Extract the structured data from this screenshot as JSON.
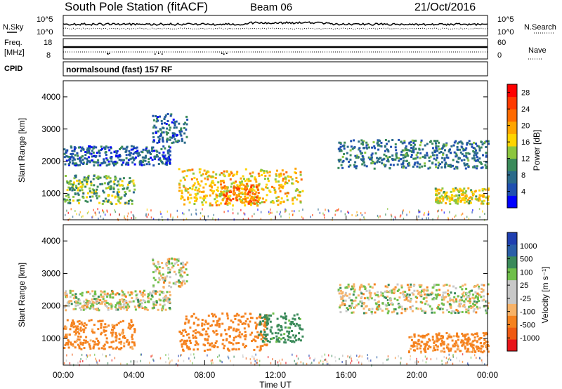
{
  "header": {
    "station": "South Pole Station (fitACF)",
    "beam": "Beam 06",
    "date": "21/Oct/2016"
  },
  "noise_panel": {
    "left_label": "N.Sky",
    "left_ticks": [
      "10^5",
      "10^0"
    ],
    "right_label": "N.Search",
    "right_ticks": [
      "10^5",
      "10^0"
    ]
  },
  "freq_panel": {
    "left_label_1": "Freq.",
    "left_label_2": "[MHz]",
    "left_ticks": [
      "18",
      "8"
    ],
    "right_label": "Nave",
    "right_ticks": [
      "60",
      "0"
    ]
  },
  "cpid": {
    "label": "CPID",
    "text": "normalsound (fast) 157 RF"
  },
  "axes": {
    "ylabel": "Slant Range [km]",
    "xlabel": "Time UT",
    "yticks": [
      "1000",
      "2000",
      "3000",
      "4000"
    ],
    "xticks": [
      "00:00",
      "04:00",
      "08:00",
      "12:00",
      "16:00",
      "20:00",
      "00:00"
    ]
  },
  "colors": {
    "power": [
      "#0000ff",
      "#1f4fb0",
      "#2a6a8a",
      "#3a8a5a",
      "#8cc63f",
      "#ffd400",
      "#ffa500",
      "#ff6a00",
      "#ff3a00",
      "#ff0000"
    ],
    "velocity": [
      "#e8141a",
      "#ef5a12",
      "#f5821f",
      "#f7b267",
      "#c8c8c8",
      "#c8c8c8",
      "#6fbf4a",
      "#3a8a5a",
      "#2a5fa8",
      "#1f3fb0"
    ]
  },
  "chart_data": [
    {
      "type": "heatmap",
      "title": "Power",
      "xlabel": "Time UT",
      "ylabel": "Slant Range [km]",
      "xlim": [
        "00:00",
        "24:00"
      ],
      "ylim": [
        180,
        4500
      ],
      "colorbar": {
        "label": "Power [dB]",
        "ticks": [
          "4",
          "8",
          "12",
          "16",
          "20",
          "24",
          "28"
        ],
        "range": [
          0,
          30
        ]
      },
      "regions": [
        {
          "x": [
            "00:00",
            "06:00"
          ],
          "y": [
            1900,
            2500
          ],
          "value": 6
        },
        {
          "x": [
            "05:00",
            "07:00"
          ],
          "y": [
            2600,
            3500
          ],
          "value": 7
        },
        {
          "x": [
            "00:00",
            "04:00"
          ],
          "y": [
            700,
            1600
          ],
          "value": 12
        },
        {
          "x": [
            "06:30",
            "13:30"
          ],
          "y": [
            650,
            1800
          ],
          "value": 17
        },
        {
          "x": [
            "09:00",
            "11:00"
          ],
          "y": [
            700,
            1300
          ],
          "value": 22
        },
        {
          "x": [
            "15:30",
            "24:00"
          ],
          "y": [
            1800,
            2700
          ],
          "value": 8
        },
        {
          "x": [
            "21:00",
            "24:00"
          ],
          "y": [
            700,
            1200
          ],
          "value": 16
        }
      ]
    },
    {
      "type": "heatmap",
      "title": "Velocity",
      "xlabel": "Time UT",
      "ylabel": "Slant Range [km]",
      "xlim": [
        "00:00",
        "24:00"
      ],
      "ylim": [
        180,
        4500
      ],
      "colorbar": {
        "label": "Velocity [m s⁻¹]",
        "ticks": [
          "1000",
          "500",
          "100",
          "25",
          "-25",
          "-100",
          "-500",
          "-1000"
        ],
        "range": [
          -1000,
          1000
        ]
      },
      "regions": [
        {
          "x": [
            "00:00",
            "06:00"
          ],
          "y": [
            1900,
            2500
          ],
          "value": 0
        },
        {
          "x": [
            "05:00",
            "07:00"
          ],
          "y": [
            2600,
            3500
          ],
          "value": 0
        },
        {
          "x": [
            "00:00",
            "04:00"
          ],
          "y": [
            700,
            1600
          ],
          "value": -200
        },
        {
          "x": [
            "06:30",
            "11:30"
          ],
          "y": [
            650,
            1800
          ],
          "value": -300
        },
        {
          "x": [
            "11:00",
            "13:30"
          ],
          "y": [
            900,
            1800
          ],
          "value": 200
        },
        {
          "x": [
            "15:30",
            "24:00"
          ],
          "y": [
            1800,
            2700
          ],
          "value": 0
        },
        {
          "x": [
            "19:30",
            "24:00"
          ],
          "y": [
            600,
            1200
          ],
          "value": -200
        }
      ]
    }
  ]
}
